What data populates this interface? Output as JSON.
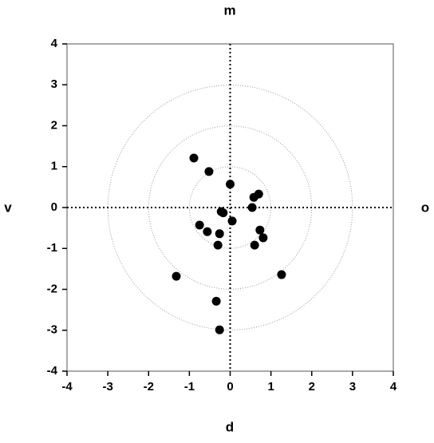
{
  "chart_data": {
    "type": "scatter",
    "top_label": "m",
    "bottom_label": "d",
    "left_label": "v",
    "right_label": "o",
    "xlim": [
      -4,
      4
    ],
    "ylim": [
      -4,
      4
    ],
    "xticks": [
      -4,
      -3,
      -2,
      -1,
      0,
      1,
      2,
      3,
      4
    ],
    "yticks": [
      -4,
      -3,
      -2,
      -1,
      0,
      1,
      2,
      3,
      4
    ],
    "rings": [
      1,
      2,
      3
    ],
    "series": [
      {
        "color": "#000000",
        "x": [
          -0.89,
          -0.52,
          0.0,
          0.58,
          0.7,
          0.54,
          -0.22,
          -0.17,
          0.05,
          -0.75,
          -0.56,
          -0.26,
          -0.3,
          0.73,
          0.81,
          0.6,
          -1.32,
          1.26,
          -0.34,
          -0.26
        ],
        "values": [
          1.21,
          0.88,
          0.57,
          0.25,
          0.33,
          0.0,
          -0.1,
          -0.13,
          -0.33,
          -0.43,
          -0.59,
          -0.64,
          -0.92,
          -0.55,
          -0.74,
          -0.92,
          -1.68,
          -1.64,
          -2.29,
          -2.99
        ]
      }
    ]
  }
}
